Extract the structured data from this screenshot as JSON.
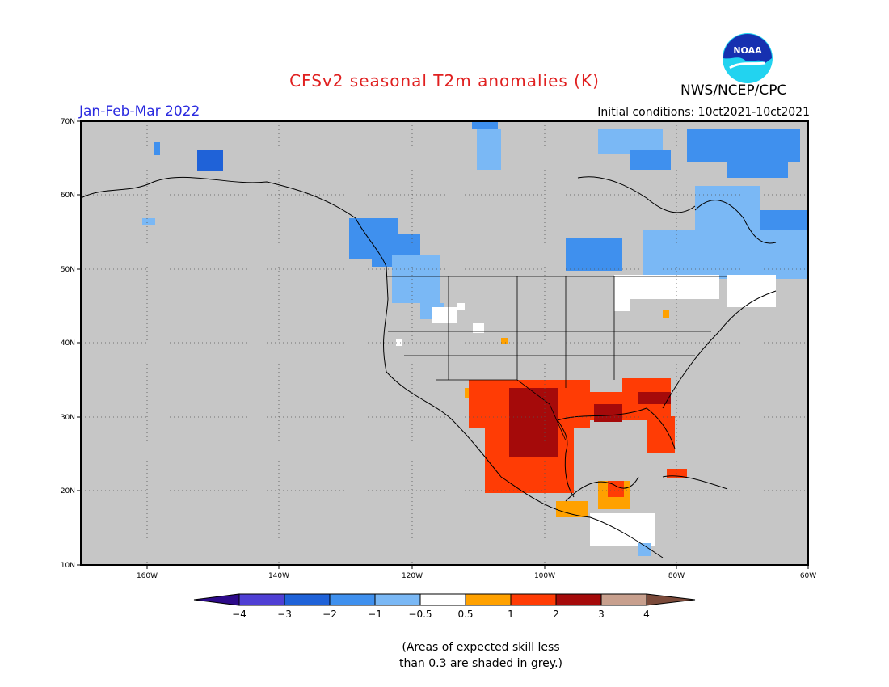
{
  "title": "CFSv2 seasonal T2m anomalies (K)",
  "period": "Jan-Feb-Mar 2022",
  "initial_conditions": "Initial conditions: 10ct2021-10ct2021",
  "agency": "NWS/NCEP/CPC",
  "logo_text": "NOAA",
  "skill_note_line1": "(Areas of expected skill less",
  "skill_note_line2": "than 0.3 are shaded in grey.)",
  "map": {
    "lon_labels": [
      "160W",
      "140W",
      "120W",
      "100W",
      "80W",
      "60W"
    ],
    "lat_labels": [
      "70N",
      "60N",
      "50N",
      "40N",
      "30N",
      "20N",
      "10N"
    ],
    "grey_color": "#c6c6c6"
  },
  "colorbar": {
    "labels": [
      "−4",
      "−3",
      "−2",
      "−1",
      "−0.5",
      "0.5",
      "1",
      "2",
      "3",
      "4"
    ],
    "colors": [
      "#2d0a8a",
      "#4f3fd4",
      "#1f62d8",
      "#3f90ee",
      "#7ab8f5",
      "#ffffff",
      "#ffa100",
      "#ff3c05",
      "#a50a0a",
      "#c8a08e",
      "#7b4a3a"
    ]
  },
  "anomaly_colors": {
    "very_cold": "#1f62d8",
    "cold": "#3f90ee",
    "cool": "#7ab8f5",
    "neutral": "#ffffff",
    "warm": "#ffa100",
    "hot": "#ff3c05",
    "very_hot": "#a50a0a"
  }
}
